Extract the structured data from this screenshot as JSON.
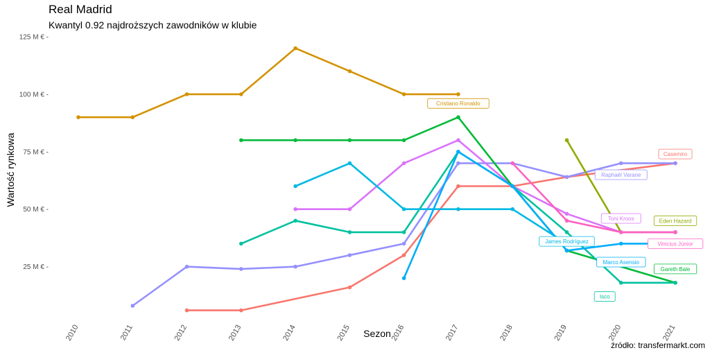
{
  "title": "Real Madrid",
  "subtitle": "Kwantyl 0.92 najdroższych zawodników w klubie",
  "caption": "źródło: transfermarkt.com",
  "chart_data": {
    "type": "line",
    "xlabel": "Sezon",
    "ylabel": "Wartość rynkowa",
    "x_ticks": [
      "2010",
      "2011",
      "2012",
      "2013",
      "2014",
      "2015",
      "2016",
      "2017",
      "2018",
      "2019",
      "2020",
      "2021"
    ],
    "y_ticks": [
      {
        "value": 25,
        "label": "25 M € -"
      },
      {
        "value": 50,
        "label": "50 M € -"
      },
      {
        "value": 75,
        "label": "75 M € -"
      },
      {
        "value": 100,
        "label": "100 M € -"
      },
      {
        "value": 125,
        "label": "125 M € -"
      }
    ],
    "xlim": [
      2010,
      2021
    ],
    "ylim": [
      0,
      125
    ],
    "grid": false,
    "series": [
      {
        "name": "Cristiano Ronaldo",
        "color": "#D39200",
        "points": [
          [
            2010,
            90
          ],
          [
            2011,
            90
          ],
          [
            2012,
            100
          ],
          [
            2013,
            100
          ],
          [
            2014,
            120
          ],
          [
            2015,
            110
          ],
          [
            2016,
            100
          ],
          [
            2017,
            100
          ]
        ],
        "label_at": [
          2017,
          96
        ]
      },
      {
        "name": "Casemiro",
        "color": "#F8766D",
        "points": [
          [
            2012,
            6
          ],
          [
            2013,
            6
          ],
          [
            2015,
            16
          ],
          [
            2016,
            30
          ],
          [
            2017,
            60
          ],
          [
            2018,
            60
          ],
          [
            2019,
            64
          ],
          [
            2021,
            70
          ]
        ],
        "label_at": [
          2021,
          74
        ]
      },
      {
        "name": "Raphaël Varane",
        "color": "#9590FF",
        "points": [
          [
            2011,
            8
          ],
          [
            2012,
            25
          ],
          [
            2013,
            24
          ],
          [
            2014,
            25
          ],
          [
            2015,
            30
          ],
          [
            2016,
            35
          ],
          [
            2017,
            70
          ],
          [
            2018,
            70
          ],
          [
            2019,
            64
          ],
          [
            2020,
            70
          ],
          [
            2021,
            70
          ]
        ],
        "label_at": [
          2020,
          65
        ]
      },
      {
        "name": "Eden Hazard",
        "color": "#93AA00",
        "points": [
          [
            2019,
            80
          ],
          [
            2020,
            40
          ],
          [
            2021,
            40
          ]
        ],
        "label_at": [
          2021,
          45
        ]
      },
      {
        "name": "Toni Kroos",
        "color": "#DB72FB",
        "points": [
          [
            2014,
            50
          ],
          [
            2015,
            50
          ],
          [
            2016,
            70
          ],
          [
            2017,
            80
          ],
          [
            2018,
            60
          ],
          [
            2019,
            48
          ],
          [
            2020,
            40
          ],
          [
            2021,
            40
          ]
        ],
        "label_at": [
          2020,
          46
        ]
      },
      {
        "name": "Vinicius Júnior",
        "color": "#FF61C3",
        "points": [
          [
            2018,
            70
          ],
          [
            2019,
            45
          ],
          [
            2020,
            40
          ],
          [
            2021,
            40
          ]
        ],
        "label_at": [
          2021,
          35
        ]
      },
      {
        "name": "Gareth Bale",
        "color": "#00BA38",
        "points": [
          [
            2013,
            80
          ],
          [
            2014,
            80
          ],
          [
            2015,
            80
          ],
          [
            2016,
            80
          ],
          [
            2017,
            90
          ],
          [
            2018,
            60
          ],
          [
            2019,
            32
          ],
          [
            2021,
            18
          ]
        ],
        "label_at": [
          2021,
          24
        ]
      },
      {
        "name": "Isco",
        "color": "#00C19F",
        "points": [
          [
            2013,
            35
          ],
          [
            2014,
            45
          ],
          [
            2015,
            40
          ],
          [
            2016,
            40
          ],
          [
            2017,
            75
          ],
          [
            2018,
            60
          ],
          [
            2019,
            40
          ],
          [
            2020,
            18
          ],
          [
            2021,
            18
          ]
        ],
        "label_at": [
          2019.7,
          12
        ]
      },
      {
        "name": "James Rodríguez",
        "color": "#00B9E3",
        "points": [
          [
            2014,
            60
          ],
          [
            2015,
            70
          ],
          [
            2016,
            50
          ],
          [
            2017,
            50
          ],
          [
            2018,
            50
          ],
          [
            2019,
            35
          ]
        ],
        "label_at": [
          2019,
          36
        ]
      },
      {
        "name": "Marco Asensio",
        "color": "#00ADFA",
        "points": [
          [
            2016,
            20
          ],
          [
            2017,
            75
          ],
          [
            2018,
            60
          ],
          [
            2019,
            32
          ],
          [
            2020,
            35
          ],
          [
            2021,
            35
          ]
        ],
        "label_at": [
          2020,
          27
        ]
      }
    ]
  }
}
